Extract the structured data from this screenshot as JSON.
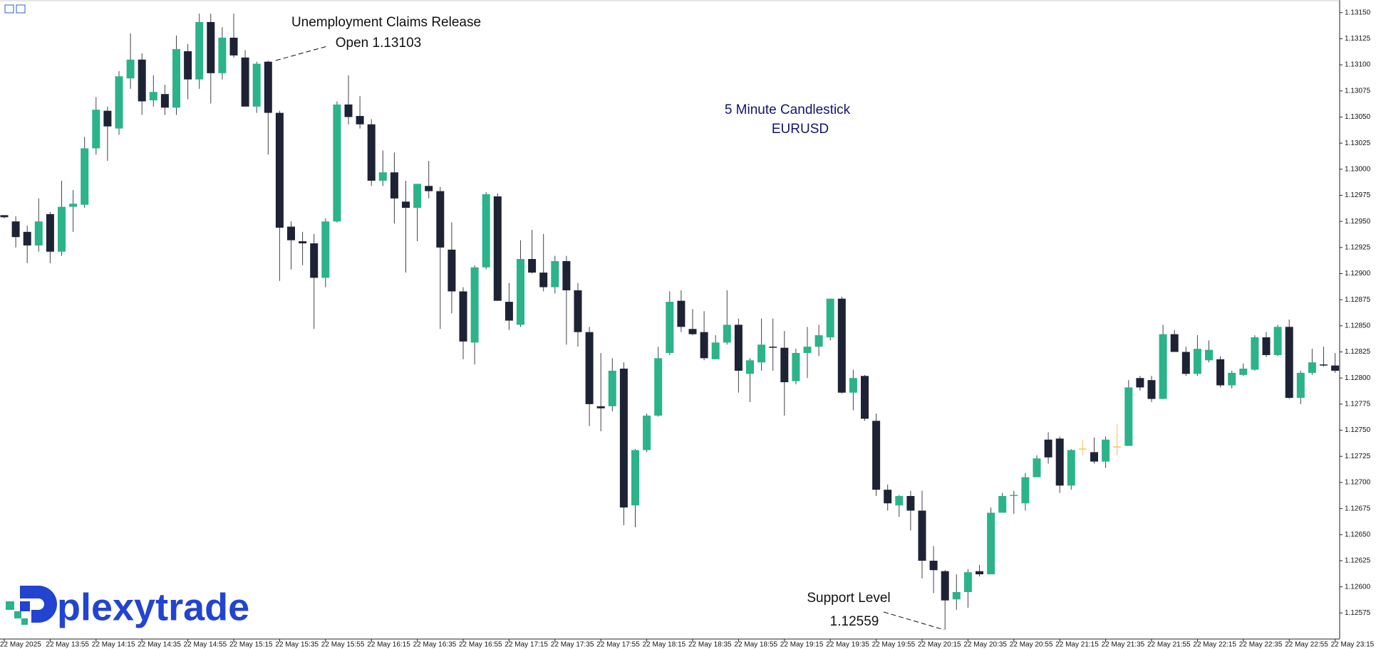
{
  "chart_data": {
    "type": "candlestick",
    "title": "5 Minute Candlestick",
    "subtitle": "EURUSD",
    "logo": "plexytrade",
    "annotations": [
      {
        "lines": [
          "Unemployment Claims Release",
          "Open 1.13103"
        ]
      },
      {
        "lines": [
          "Support Level",
          "1.12559"
        ]
      }
    ],
    "up_color": "#2bb38a",
    "down_color": "#1e2235",
    "flat_color": "#f4c060",
    "grid": false,
    "categories": [
      "22 May 2025",
      null,
      null,
      null,
      "22 May 13:55",
      null,
      null,
      null,
      "22 May 14:15",
      null,
      null,
      null,
      "22 May 14:35",
      null,
      null,
      null,
      "22 May 14:55",
      null,
      null,
      null,
      "22 May 15:15",
      null,
      null,
      null,
      "22 May 15:35",
      null,
      null,
      null,
      "22 May 15:55",
      null,
      null,
      null,
      "22 May 16:15",
      null,
      null,
      null,
      "22 May 16:35",
      null,
      null,
      null,
      "22 May 16:55",
      null,
      null,
      null,
      "22 May 17:15",
      null,
      null,
      null,
      "22 May 17:35",
      null,
      null,
      null,
      "22 May 17:55",
      null,
      null,
      null,
      "22 May 18:15",
      null,
      null,
      null,
      "22 May 18:35",
      null,
      null,
      null,
      "22 May 18:55",
      null,
      null,
      null,
      "22 May 19:15",
      null,
      null,
      null,
      "22 May 19:35",
      null,
      null,
      null,
      "22 May 19:55",
      null,
      null,
      null,
      "22 May 20:15",
      null,
      null,
      null,
      "22 May 20:35",
      null,
      null,
      null,
      "22 May 20:55",
      null,
      null,
      null,
      "22 May 21:15",
      null,
      null,
      null,
      "22 May 21:35",
      null,
      null,
      null,
      "22 May 21:55",
      null,
      null,
      null,
      "22 May 22:15",
      null,
      null,
      null,
      "22 May 22:35",
      null,
      null,
      null,
      "22 May 22:55",
      null,
      null,
      null,
      "22 May 23:15"
    ],
    "open": [
      1.12956,
      1.1295,
      1.1294,
      1.12927,
      1.12957,
      1.12921,
      1.12964,
      1.12966,
      1.1302,
      1.13056,
      1.13039,
      1.13087,
      1.13105,
      1.13066,
      1.13072,
      1.13059,
      1.13113,
      1.13086,
      1.13141,
      1.13092,
      1.13126,
      1.13107,
      1.1306,
      1.13103,
      1.13054,
      1.12945,
      1.12931,
      1.12929,
      1.12896,
      1.1295,
      1.13062,
      1.13051,
      1.13043,
      1.12989,
      1.12997,
      1.12969,
      1.12963,
      1.12984,
      1.12979,
      1.12923,
      1.12883,
      1.12834,
      1.12906,
      1.12974,
      1.12873,
      1.12851,
      1.12914,
      1.12901,
      1.12887,
      1.12912,
      1.12884,
      1.12844,
      1.12773,
      1.12773,
      1.12809,
      1.12678,
      1.12731,
      1.12764,
      1.12824,
      1.12874,
      1.12847,
      1.12844,
      1.12818,
      1.12834,
      1.12851,
      1.12804,
      1.12815,
      1.1283,
      1.12829,
      1.12797,
      1.12824,
      1.1283,
      1.12839,
      1.12876,
      1.12786,
      1.12802,
      1.12759,
      1.12693,
      1.12678,
      1.12687,
      1.12673,
      1.12625,
      1.12615,
      1.12588,
      1.12595,
      1.12615,
      1.12612,
      1.12671,
      1.12687,
      1.1268,
      1.12705,
      1.12741,
      1.12742,
      1.12697,
      1.12732,
      1.12729,
      1.1272,
      1.12734,
      1.12735,
      1.128,
      1.12798,
      1.1278,
      1.12842,
      1.12825,
      1.12804,
      1.12817,
      1.12818,
      1.12793,
      1.12803,
      1.12808,
      1.12839,
      1.12822,
      1.12849,
      1.12781,
      1.12805,
      1.12813,
      1.12812
    ],
    "high": [
      1.12956,
      1.12955,
      1.12946,
      1.12972,
      1.12959,
      1.12989,
      1.1298,
      1.13031,
      1.13069,
      1.1306,
      1.13094,
      1.1313,
      1.13111,
      1.1309,
      1.13081,
      1.13128,
      1.1312,
      1.13149,
      1.13149,
      1.13136,
      1.13149,
      1.13114,
      1.13103,
      1.13104,
      1.13056,
      1.1295,
      1.1294,
      1.12938,
      1.12953,
      1.13065,
      1.1309,
      1.1307,
      1.13048,
      1.13018,
      1.13016,
      1.12989,
      1.12986,
      1.13008,
      1.12983,
      1.12949,
      1.12887,
      1.12908,
      1.12978,
      1.12977,
      1.12891,
      1.12932,
      1.12942,
      1.12938,
      1.12917,
      1.12917,
      1.12891,
      1.12849,
      1.12824,
      1.12819,
      1.12815,
      1.12732,
      1.12766,
      1.1283,
      1.12883,
      1.12884,
      1.12866,
      1.12864,
      1.12841,
      1.12884,
      1.12857,
      1.12819,
      1.12857,
      1.12857,
      1.12845,
      1.12828,
      1.12849,
      1.12851,
      1.12876,
      1.12878,
      1.12808,
      1.12803,
      1.12766,
      1.12698,
      1.12688,
      1.12692,
      1.12692,
      1.12639,
      1.12616,
      1.12612,
      1.12617,
      1.12621,
      1.12676,
      1.1269,
      1.12692,
      1.12709,
      1.12726,
      1.12748,
      1.12744,
      1.12732,
      1.12741,
      1.12743,
      1.12744,
      1.12756,
      1.12798,
      1.12802,
      1.12802,
      1.12851,
      1.12846,
      1.1283,
      1.12841,
      1.12836,
      1.12821,
      1.12807,
      1.12814,
      1.12841,
      1.12844,
      1.12851,
      1.12856,
      1.12807,
      1.12828,
      1.1283,
      1.12824
    ],
    "low": [
      1.12953,
      1.12925,
      1.1291,
      1.12921,
      1.1291,
      1.12917,
      1.1294,
      1.12963,
      1.13014,
      1.13008,
      1.13033,
      1.13077,
      1.13052,
      1.1306,
      1.13052,
      1.13052,
      1.13067,
      1.13077,
      1.13063,
      1.13086,
      1.13107,
      1.13062,
      1.13054,
      1.13014,
      1.12893,
      1.12904,
      1.12908,
      1.12847,
      1.12887,
      1.12949,
      1.13043,
      1.13039,
      1.12984,
      1.12984,
      1.12948,
      1.12901,
      1.12931,
      1.12972,
      1.12847,
      1.12862,
      1.12818,
      1.12813,
      1.12904,
      1.12874,
      1.12846,
      1.12849,
      1.129,
      1.12883,
      1.12881,
      1.12832,
      1.1283,
      1.12754,
      1.12749,
      1.12768,
      1.12659,
      1.12657,
      1.12729,
      1.12763,
      1.12822,
      1.12844,
      1.12841,
      1.12817,
      1.12818,
      1.12832,
      1.12786,
      1.12777,
      1.12807,
      1.12807,
      1.12764,
      1.12794,
      1.128,
      1.12821,
      1.12836,
      1.12785,
      1.12769,
      1.12759,
      1.12687,
      1.12673,
      1.12667,
      1.12654,
      1.12608,
      1.12594,
      1.12559,
      1.12578,
      1.1258,
      1.1261,
      1.12612,
      1.12671,
      1.1267,
      1.12673,
      1.12705,
      1.12718,
      1.1269,
      1.12693,
      1.12726,
      1.12718,
      1.12714,
      1.12726,
      1.12735,
      1.12788,
      1.12777,
      1.1278,
      1.12825,
      1.12802,
      1.12802,
      1.12815,
      1.12791,
      1.1279,
      1.12802,
      1.12807,
      1.1282,
      1.12821,
      1.1278,
      1.12775,
      1.12803,
      1.12811,
      1.12805
    ],
    "close": [
      1.12954,
      1.12935,
      1.12927,
      1.1295,
      1.12921,
      1.12964,
      1.12967,
      1.1302,
      1.13057,
      1.13041,
      1.13089,
      1.13105,
      1.13065,
      1.13074,
      1.13059,
      1.13115,
      1.13086,
      1.13141,
      1.13092,
      1.13126,
      1.13109,
      1.1306,
      1.13101,
      1.13054,
      1.12944,
      1.12932,
      1.12929,
      1.12896,
      1.1295,
      1.13062,
      1.1305,
      1.13043,
      1.12989,
      1.12997,
      1.12972,
      1.12963,
      1.12986,
      1.12979,
      1.12925,
      1.12883,
      1.12835,
      1.12906,
      1.12976,
      1.12874,
      1.12855,
      1.12914,
      1.12901,
      1.12887,
      1.12912,
      1.12884,
      1.12844,
      1.12775,
      1.12771,
      1.12807,
      1.12676,
      1.12731,
      1.12764,
      1.12819,
      1.12873,
      1.12849,
      1.12842,
      1.12819,
      1.12834,
      1.12851,
      1.12807,
      1.12817,
      1.12832,
      1.12829,
      1.12796,
      1.12824,
      1.1283,
      1.12841,
      1.12876,
      1.12786,
      1.128,
      1.12761,
      1.12693,
      1.1268,
      1.12687,
      1.12673,
      1.12625,
      1.12616,
      1.12587,
      1.12595,
      1.12614,
      1.12612,
      1.12671,
      1.12687,
      1.12688,
      1.12705,
      1.12723,
      1.12724,
      1.12697,
      1.12731,
      1.12732,
      1.1272,
      1.12741,
      1.12734,
      1.12791,
      1.12791,
      1.1278,
      1.12842,
      1.12825,
      1.12804,
      1.12828,
      1.12827,
      1.12793,
      1.12805,
      1.12809,
      1.12839,
      1.12822,
      1.12849,
      1.12781,
      1.12805,
      1.12815,
      1.12812,
      1.12807
    ],
    "ylim": [
      1.1255,
      1.13158
    ],
    "yticks": [
      1.12575,
      {
        "value": 1.126,
        "label": "1.12600"
      },
      1.12625,
      {
        "value": 1.1265,
        "label": "1.12650"
      },
      1.12675,
      {
        "value": 1.127,
        "label": "1.12700"
      },
      1.12725,
      {
        "value": 1.1275,
        "label": "1.12750"
      },
      1.12775,
      {
        "value": 1.128,
        "label": "1.12800"
      },
      1.12825,
      {
        "value": 1.1285,
        "label": "1.12850"
      },
      1.12875,
      {
        "value": 1.129,
        "label": "1.12900"
      },
      1.12925,
      {
        "value": 1.1295,
        "label": "1.12950"
      },
      1.12975,
      {
        "value": 1.13,
        "label": "1.13000"
      },
      1.13025,
      {
        "value": 1.1305,
        "label": "1.13050"
      },
      1.13075,
      {
        "value": 1.131,
        "label": "1.13100"
      },
      1.13125,
      {
        "value": 1.1315,
        "label": "1.13150"
      }
    ]
  }
}
